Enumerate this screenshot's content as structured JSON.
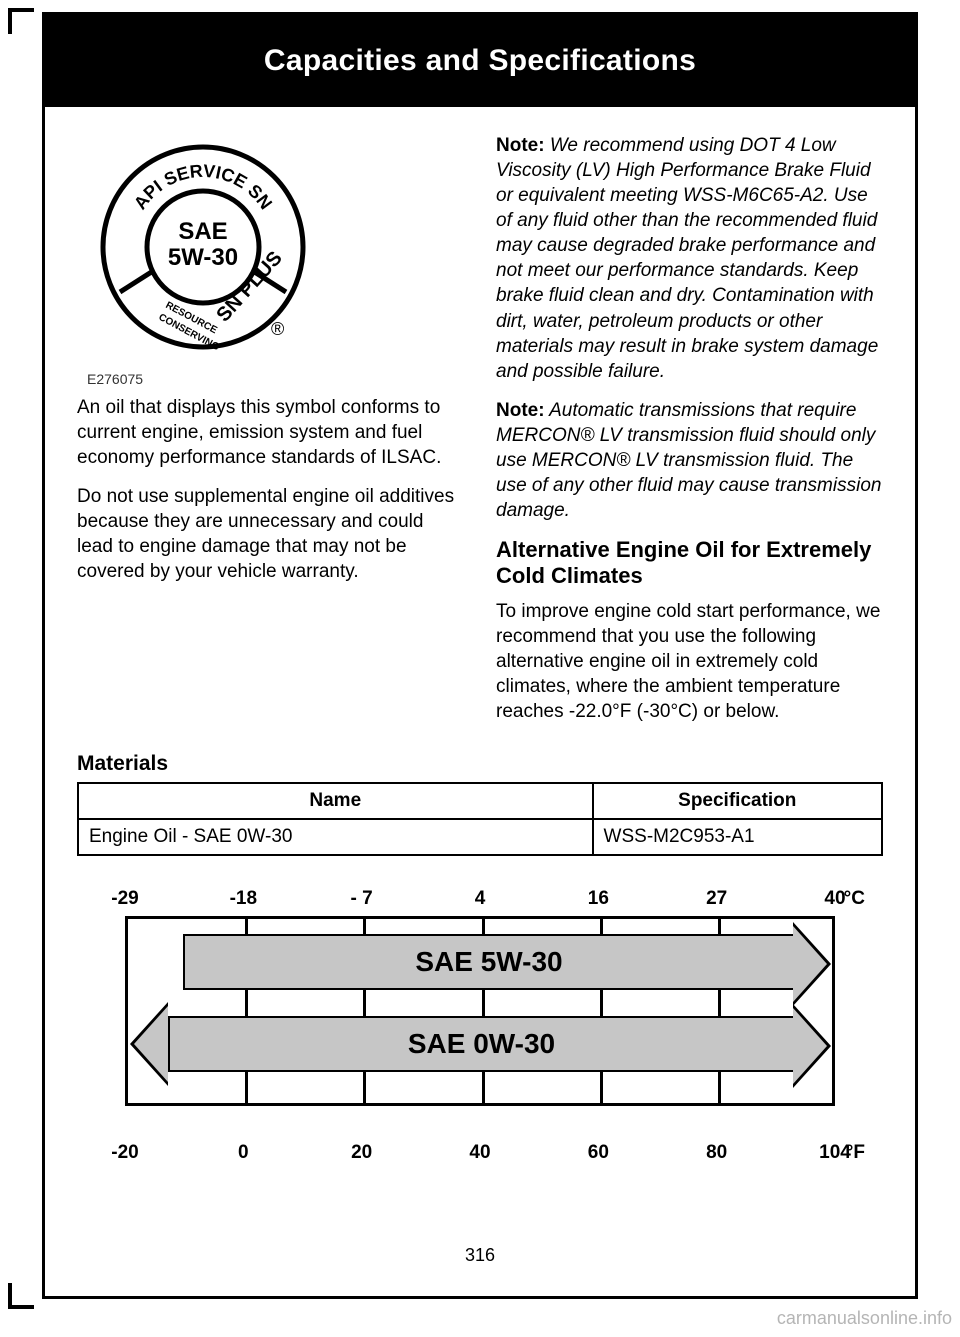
{
  "page": {
    "title": "Capacities and Specifications",
    "number": "316",
    "watermark": "carmanualsonline.info"
  },
  "api_seal": {
    "top_text": "API SERVICE SN",
    "center_text": "SAE\n5W-30",
    "bottom_left": "RESOURCE CONSERVING",
    "bottom_right": "SN PLUS",
    "caption": "E276075"
  },
  "left_column": {
    "p1": "An oil that displays this symbol conforms to current engine, emission system and fuel economy performance standards of ILSAC.",
    "p2": "Do not use supplemental engine oil additives because they are unnecessary and could lead to engine damage that may not be covered by your vehicle warranty."
  },
  "right_column": {
    "note1_label": "Note:",
    "note1_text": " We recommend using DOT 4 Low Viscosity (LV) High Performance Brake Fluid or equivalent meeting WSS-M6C65-A2. Use of any fluid other than the recommended fluid may cause degraded brake performance and not meet our performance standards. Keep brake fluid clean and dry. Contamination with dirt, water, petroleum products or other materials may result in brake system damage and possible failure.",
    "note2_label": "Note:",
    "note2_text": " Automatic transmissions that require MERCON® LV transmission fluid should only use MERCON® LV transmission fluid. The use of any other fluid may cause transmission damage.",
    "subhead": "Alternative Engine Oil for Extremely Cold Climates",
    "p1": "To improve engine cold start performance, we recommend that you use the following alternative engine oil in extremely cold climates, where the ambient temperature reaches -22.0°F (-30°C) or below."
  },
  "materials": {
    "heading": "Materials",
    "col_name": "Name",
    "col_spec": "Specification",
    "row1_name": "Engine Oil - SAE 0W-30",
    "row1_spec": "WSS-M2C953-A1"
  },
  "temp_chart": {
    "unit_c": "°C",
    "unit_f": "°F",
    "c_labels": [
      "-29",
      "-18",
      "- 7",
      "4",
      "16",
      "27",
      "40"
    ],
    "f_labels": [
      "-20",
      "0",
      "20",
      "40",
      "60",
      "80",
      "104"
    ],
    "grid_positions_pct": [
      0,
      16.67,
      33.33,
      50,
      66.67,
      83.33,
      100
    ],
    "arrow1_label": "SAE 5W-30",
    "arrow2_label": "SAE 0W-30",
    "arrow_fill": "#c6c6c6",
    "border_color": "#000000"
  }
}
